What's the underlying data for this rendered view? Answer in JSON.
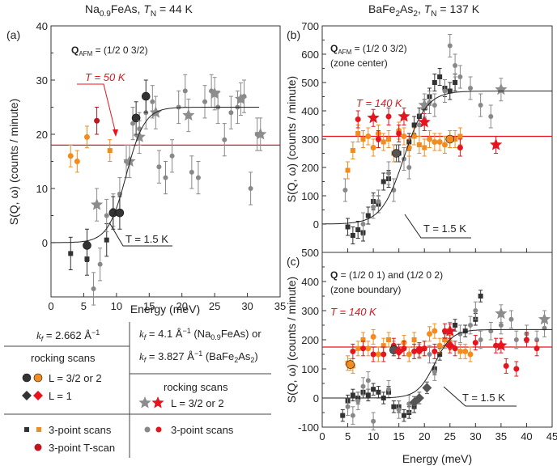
{
  "header": {
    "left": {
      "compound": "Na",
      "sub": "0.9",
      "compound2": "FeAs, ",
      "tn_label": "T",
      "tn_sub": "N",
      "tn_value": " = 44 K"
    },
    "right": {
      "compound": "BaFe",
      "sub1": "2",
      "compound2": "As",
      "sub2": "2",
      "sep": ", ",
      "tn_label": "T",
      "tn_sub": "N",
      "tn_value": " = 137 K"
    }
  },
  "panels": {
    "a": {
      "label": "(a)",
      "q_label": "Q",
      "q_sub": "AFM",
      "q_value": " = (1/2 0 3/2)",
      "t_high": "T = 50 K",
      "t_low": "T = 1.5 K"
    },
    "b": {
      "label": "(b)",
      "q_label": "Q",
      "q_sub": "AFM",
      "q_value": " = (1/2 0 3/2)",
      "q_note": "(zone center)",
      "t_high": "T = 140 K",
      "t_low": "T = 1.5 K"
    },
    "c": {
      "label": "(c)",
      "q_label": "Q",
      "q_value": " = (1/2 0 1) and (1/2 0 2)",
      "q_note": "(zone boundary)",
      "t_high": "T = 140 K",
      "t_low": "T = 1.5 K"
    }
  },
  "legend": {
    "kf_left": "k",
    "kf_left_val": " = 2.662 Å",
    "kf_sup": "−1",
    "kf_right1": " = 4.1 Å",
    "kf_right1_tail": " (Na",
    "kf_right1_sub": "0.9",
    "kf_right1_end": "FeAs) or",
    "kf_right2": " = 3.827 Å",
    "kf_right2_tail": " (BaFe",
    "kf_right2_sub1": "2",
    "kf_right2_mid": "As",
    "kf_right2_sub2": "2",
    "kf_right2_end": ")",
    "rocking": "rocking scans",
    "l32": "L = 3/2 or 2",
    "l1": "L = 1",
    "three_point": "3-point scans",
    "three_point_t": "3-point T-scan"
  },
  "chart_data": [
    {
      "id": "a",
      "type": "scatter",
      "xlabel": "Energy (meV)",
      "ylabel": "S(Q, ω) (counts / minute)",
      "xlim": [
        0,
        35
      ],
      "ylim": [
        -10,
        40
      ],
      "xticks": [
        0,
        5,
        10,
        15,
        20,
        25,
        30,
        35
      ],
      "yticks": [
        0,
        10,
        20,
        30,
        40
      ],
      "hline_50K": 18,
      "fit_1p5K": {
        "base": 0,
        "top": 25,
        "x0": 11.5,
        "w": 1.4
      },
      "series": [
        {
          "kind": "square",
          "color": "#333333",
          "x": [
            3,
            5.5,
            8.5
          ],
          "y": [
            -2,
            -3,
            0.5
          ],
          "err": [
            3,
            3,
            3
          ]
        },
        {
          "kind": "dot",
          "color": "#888888",
          "x": [
            6.5,
            7.5,
            8.5,
            9.5,
            10.5,
            11.5,
            12.5,
            13.5,
            14.5,
            15.5,
            16.5,
            17.5,
            18.5,
            19.5,
            20.5,
            21.5,
            22.5,
            23.5,
            24.5,
            25.5,
            26.5,
            27.5,
            28.5,
            29.5,
            30.5,
            31.5
          ],
          "y": [
            -8.5,
            -4,
            5,
            6,
            9,
            15,
            22,
            21,
            24,
            26,
            14,
            12,
            16,
            25,
            28,
            13,
            12,
            26,
            28,
            25,
            19,
            24,
            25,
            27,
            10,
            20
          ],
          "err": [
            3,
            3,
            3,
            3,
            3,
            3,
            3,
            3,
            3,
            3,
            3,
            3,
            3,
            3,
            3,
            3,
            3,
            3,
            3,
            3,
            3,
            3,
            3,
            3,
            3,
            3
          ]
        },
        {
          "kind": "orange",
          "color": "#f28c1e",
          "x": [
            3,
            4,
            5.5,
            9
          ],
          "y": [
            16,
            15,
            19.5,
            17
          ],
          "err": [
            2,
            2,
            2,
            2
          ]
        },
        {
          "kind": "red",
          "color": "#c0141e",
          "x": [
            7
          ],
          "y": [
            22.5
          ],
          "err": [
            2.5
          ]
        },
        {
          "kind": "ball",
          "color": "#333333",
          "x": [
            5.5,
            9.5,
            10.5,
            13,
            14.5
          ],
          "y": [
            -0.5,
            5.5,
            5.5,
            23,
            27
          ],
          "err": [
            3,
            3,
            3,
            3,
            3
          ]
        },
        {
          "kind": "star",
          "color": "#8c8c8c",
          "x": [
            7,
            12,
            13.5,
            16,
            21,
            25,
            29,
            32
          ],
          "y": [
            7,
            15,
            19.5,
            24,
            23.5,
            27.5,
            26.5,
            20
          ],
          "err": [
            3,
            3,
            3,
            3,
            3,
            3,
            3,
            3
          ]
        }
      ]
    },
    {
      "id": "b",
      "type": "scatter",
      "xlabel": "",
      "ylabel": "S(Q, ω) (counts / minute)",
      "xlim": [
        0,
        45
      ],
      "ylim": [
        -100,
        700
      ],
      "yticks": [
        0,
        100,
        200,
        300,
        400,
        500,
        600,
        700
      ],
      "hline_140K": 310,
      "fit_1p5K": {
        "base": 0,
        "top": 470,
        "x0": 16,
        "w": 2.2
      },
      "series": [
        {
          "kind": "square",
          "color": "#333333",
          "x": [
            5,
            6,
            7,
            8,
            9,
            10,
            11,
            12,
            13,
            15,
            17,
            18,
            19,
            20,
            21,
            22,
            23,
            24,
            25,
            26
          ],
          "y": [
            -10,
            -40,
            -20,
            -30,
            30,
            80,
            70,
            150,
            160,
            250,
            290,
            350,
            380,
            410,
            450,
            500,
            520,
            480,
            470,
            500
          ],
          "err": [
            30,
            30,
            30,
            30,
            30,
            30,
            30,
            30,
            30,
            30,
            30,
            30,
            30,
            30,
            30,
            30,
            30,
            30,
            30,
            30
          ]
        },
        {
          "kind": "dot",
          "color": "#888888",
          "x": [
            4.5,
            8,
            10,
            11,
            13,
            14,
            16,
            17,
            19,
            20,
            21,
            22,
            24,
            25,
            26,
            27,
            29,
            31,
            33
          ],
          "y": [
            120,
            0,
            60,
            80,
            180,
            120,
            230,
            200,
            350,
            370,
            430,
            420,
            470,
            630,
            560,
            520,
            480,
            420,
            380
          ],
          "err": [
            40,
            40,
            40,
            40,
            40,
            40,
            40,
            40,
            40,
            40,
            40,
            40,
            40,
            40,
            40,
            40,
            40,
            40,
            40
          ]
        },
        {
          "kind": "orange",
          "color": "#f28c1e",
          "x": [
            5,
            6,
            7,
            8,
            9,
            10,
            11,
            12,
            13,
            14,
            15,
            16,
            17,
            18,
            19,
            20,
            21,
            22,
            23,
            24,
            25,
            26,
            27
          ],
          "y": [
            190,
            260,
            320,
            300,
            310,
            270,
            320,
            290,
            300,
            250,
            330,
            310,
            270,
            310,
            280,
            270,
            300,
            290,
            290,
            280,
            300,
            300,
            310
          ],
          "err": [
            30,
            30,
            30,
            30,
            30,
            30,
            30,
            30,
            30,
            30,
            30,
            30,
            30,
            30,
            30,
            30,
            30,
            30,
            30,
            30,
            30,
            30,
            30
          ]
        },
        {
          "kind": "red",
          "color": "#e6141e",
          "x": [
            7,
            11,
            13,
            15,
            27
          ],
          "y": [
            370,
            300,
            380,
            320,
            270
          ],
          "err": [
            30,
            30,
            30,
            30,
            30
          ]
        },
        {
          "kind": "ball",
          "color": "#f28c1e",
          "x": [
            25
          ],
          "y": [
            300
          ],
          "err": [
            30
          ]
        },
        {
          "kind": "ball",
          "color": "#555555",
          "x": [
            14.5
          ],
          "y": [
            250
          ],
          "err": [
            30
          ]
        },
        {
          "kind": "redstar",
          "color": "#e6141e",
          "x": [
            10,
            16,
            20,
            34
          ],
          "y": [
            375,
            380,
            360,
            280
          ],
          "err": [
            30,
            30,
            30,
            30
          ]
        },
        {
          "kind": "star",
          "color": "#8c8c8c",
          "x": [
            20,
            35
          ],
          "y": [
            420,
            475
          ],
          "err": [
            40,
            40
          ]
        }
      ]
    },
    {
      "id": "c",
      "type": "scatter",
      "xlabel": "Energy (meV)",
      "ylabel": "S(Q, ω) (counts / minute)",
      "xlim": [
        0,
        45
      ],
      "ylim": [
        -100,
        500
      ],
      "xticks": [
        0,
        5,
        10,
        15,
        20,
        25,
        30,
        35,
        40,
        45
      ],
      "yticks": [
        -100,
        0,
        100,
        200,
        300,
        400,
        500
      ],
      "hline_140K": 175,
      "fit_1p5K": {
        "base": 0,
        "top": 235,
        "x0": 22,
        "w": 1.7
      },
      "series": [
        {
          "kind": "square",
          "color": "#333333",
          "x": [
            4,
            5,
            6,
            7,
            8,
            9,
            10,
            11,
            12,
            13,
            14,
            15,
            16,
            17,
            18,
            22,
            23,
            24,
            26,
            28,
            30,
            31
          ],
          "y": [
            -60,
            -10,
            10,
            0,
            20,
            10,
            30,
            20,
            0,
            20,
            -30,
            -30,
            -60,
            -50,
            -30,
            100,
            150,
            200,
            250,
            230,
            270,
            350
          ],
          "err": [
            20,
            20,
            20,
            20,
            20,
            20,
            20,
            20,
            20,
            20,
            20,
            20,
            20,
            20,
            20,
            20,
            20,
            20,
            20,
            20,
            20,
            20
          ]
        },
        {
          "kind": "dot",
          "color": "#888888",
          "x": [
            5,
            6,
            7,
            8,
            9,
            10,
            13,
            15,
            17,
            21,
            22,
            24,
            25,
            27,
            29,
            30,
            31,
            33,
            35,
            37,
            38,
            40,
            42,
            43.5
          ],
          "y": [
            -30,
            -60,
            -10,
            40,
            60,
            -80,
            30,
            -40,
            -20,
            150,
            90,
            200,
            230,
            220,
            250,
            300,
            200,
            230,
            250,
            270,
            200,
            220,
            200,
            240
          ],
          "err": [
            30,
            30,
            30,
            30,
            30,
            30,
            30,
            30,
            30,
            30,
            30,
            30,
            30,
            30,
            30,
            30,
            30,
            30,
            30,
            30,
            30,
            30,
            30,
            30
          ]
        },
        {
          "kind": "orange",
          "color": "#f28c1e",
          "x": [
            5,
            6,
            7,
            8,
            9,
            10,
            11,
            12,
            13,
            14,
            15,
            16,
            17,
            18,
            19,
            20,
            21,
            22,
            23,
            24,
            25,
            27,
            28,
            29
          ],
          "y": [
            120,
            110,
            170,
            200,
            170,
            210,
            150,
            180,
            200,
            170,
            160,
            190,
            150,
            200,
            160,
            170,
            220,
            230,
            180,
            200,
            190,
            160,
            160,
            150
          ],
          "err": [
            25,
            25,
            25,
            25,
            25,
            25,
            25,
            25,
            25,
            25,
            25,
            25,
            25,
            25,
            25,
            25,
            25,
            25,
            25,
            25,
            25,
            25,
            25,
            25
          ]
        },
        {
          "kind": "red",
          "color": "#e6141e",
          "x": [
            6,
            8,
            10,
            12,
            14,
            16,
            18,
            20,
            22,
            24,
            26,
            30,
            34,
            36,
            38,
            40,
            42
          ],
          "y": [
            160,
            170,
            150,
            150,
            180,
            170,
            160,
            170,
            160,
            230,
            170,
            190,
            180,
            110,
            100,
            200,
            170
          ],
          "err": [
            25,
            25,
            25,
            25,
            25,
            25,
            25,
            25,
            25,
            25,
            25,
            25,
            25,
            25,
            25,
            25,
            25
          ]
        },
        {
          "kind": "ball",
          "color": "#f28c1e",
          "x": [
            5.5
          ],
          "y": [
            115
          ],
          "err": [
            20
          ]
        },
        {
          "kind": "ball",
          "color": "#555555",
          "x": [
            14
          ],
          "y": [
            165
          ],
          "err": [
            20
          ]
        },
        {
          "kind": "diamond",
          "color": "#e6141e",
          "x": [
            15,
            19,
            25
          ],
          "y": [
            160,
            165,
            180
          ],
          "err": [
            25,
            25,
            25
          ]
        },
        {
          "kind": "diamond",
          "color": "#555555",
          "x": [
            18,
            19,
            20.5
          ],
          "y": [
            -15,
            0,
            35
          ],
          "err": [
            20,
            20,
            20
          ]
        },
        {
          "kind": "redstar",
          "color": "#e6141e",
          "x": [
            25,
            35
          ],
          "y": [
            230,
            180
          ],
          "err": [
            25,
            25
          ]
        },
        {
          "kind": "star",
          "color": "#8c8c8c",
          "x": [
            35,
            43.5
          ],
          "y": [
            290,
            270
          ],
          "err": [
            30,
            30
          ]
        }
      ]
    }
  ]
}
